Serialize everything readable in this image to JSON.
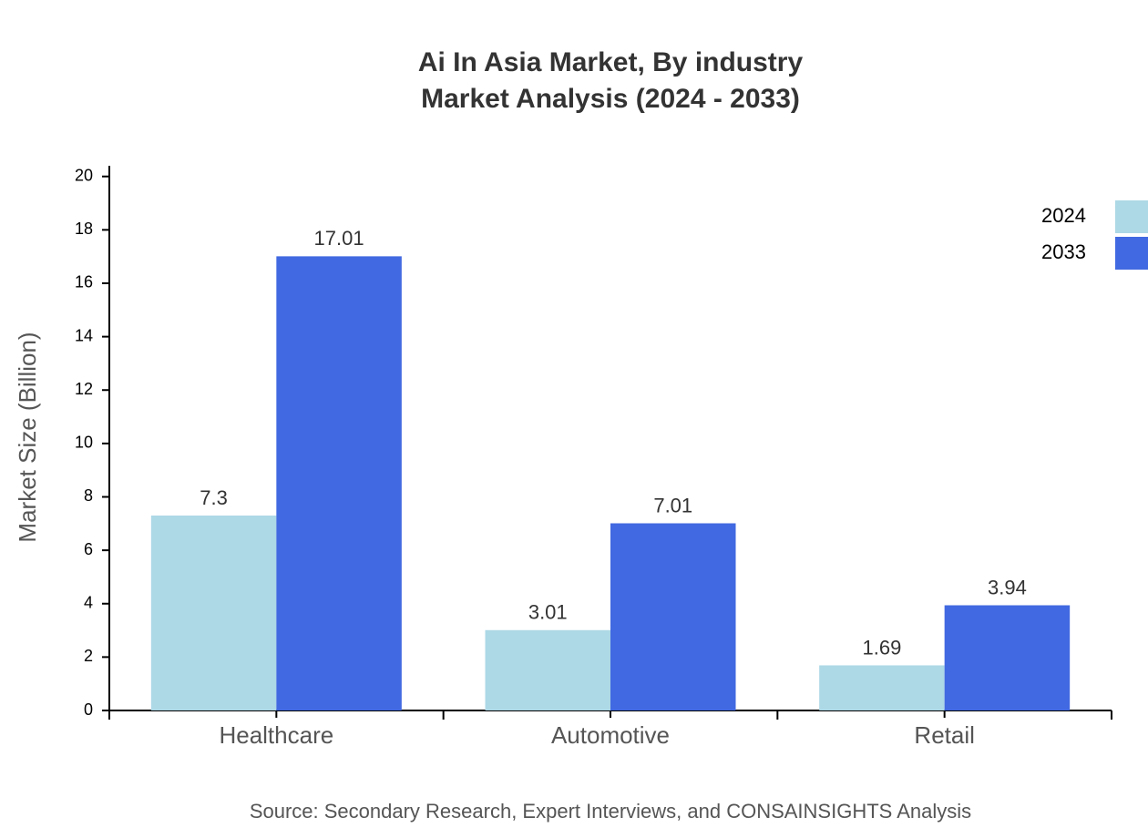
{
  "chart_data": {
    "type": "bar",
    "title": "Ai In Asia Market, By industry",
    "subtitle": "Market Analysis (2024 - 2033)",
    "y_label": "Market Size (Billion)",
    "source": "Source: Secondary Research, Expert Interviews, and CONSAINSIGHTS Analysis",
    "categories": [
      "Healthcare",
      "Automotive",
      "Retail"
    ],
    "series": [
      {
        "name": "2024",
        "color": "#add8e6",
        "values": [
          7.3,
          3.01,
          1.69
        ]
      },
      {
        "name": "2033",
        "color": "#4169e1",
        "values": [
          17.01,
          7.01,
          3.94
        ]
      }
    ],
    "ylim": [
      0,
      20.4
    ],
    "yticks": [
      0,
      2,
      4,
      6,
      8,
      10,
      12,
      14,
      16,
      18,
      20
    ],
    "legend": "top-right"
  }
}
